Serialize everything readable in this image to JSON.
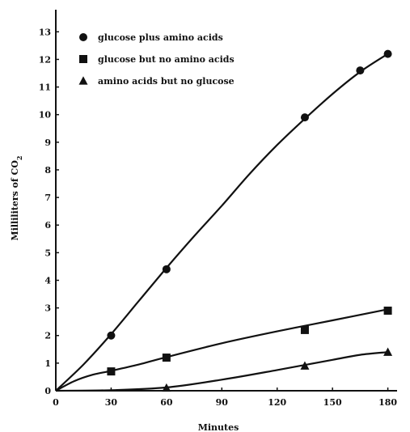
{
  "chart_data": {
    "type": "line",
    "title": "",
    "xlabel": "Minutes",
    "ylabel": "Milliliters of CO",
    "ylabel_subscript": "2",
    "xlim": [
      0,
      185
    ],
    "ylim": [
      0,
      13.8
    ],
    "xticks": [
      0,
      30,
      60,
      90,
      120,
      150,
      180
    ],
    "xtick_labels": [
      "0",
      "30",
      "60",
      "90",
      "120",
      "150",
      "180"
    ],
    "yticks": [
      0,
      1,
      2,
      3,
      4,
      5,
      6,
      7,
      8,
      9,
      10,
      11,
      12,
      13
    ],
    "ytick_labels": [
      "0",
      "1",
      "2",
      "3",
      "4",
      "5",
      "6",
      "7",
      "8",
      "9",
      "10",
      "11",
      "12",
      "13"
    ],
    "grid": false,
    "legend_position": "top-left",
    "series": [
      {
        "name": "glucose plus amino acids",
        "marker": "circle",
        "x": [
          30,
          60,
          135,
          165,
          180
        ],
        "y": [
          2.0,
          4.4,
          9.9,
          11.6,
          12.2
        ],
        "curve_x": [
          0,
          15,
          30,
          45,
          60,
          75,
          90,
          105,
          120,
          135,
          150,
          165,
          180
        ],
        "curve_y": [
          0,
          0.95,
          2.05,
          3.25,
          4.45,
          5.6,
          6.7,
          7.85,
          8.9,
          9.85,
          10.75,
          11.55,
          12.2
        ]
      },
      {
        "name": "glucose but no amino acids",
        "marker": "square",
        "x": [
          30,
          60,
          135,
          180
        ],
        "y": [
          0.7,
          1.2,
          2.2,
          2.9
        ],
        "curve_x": [
          0,
          10,
          20,
          30,
          45,
          60,
          90,
          120,
          150,
          180
        ],
        "curve_y": [
          0,
          0.35,
          0.58,
          0.72,
          0.95,
          1.22,
          1.72,
          2.15,
          2.55,
          2.95
        ]
      },
      {
        "name": "amino acids but no glucose",
        "marker": "triangle",
        "x": [
          60,
          135,
          180
        ],
        "y": [
          0.1,
          0.9,
          1.4
        ],
        "curve_x": [
          0,
          30,
          60,
          90,
          120,
          150,
          165,
          180
        ],
        "curve_y": [
          0,
          0.02,
          0.12,
          0.4,
          0.75,
          1.12,
          1.3,
          1.4
        ]
      }
    ]
  }
}
